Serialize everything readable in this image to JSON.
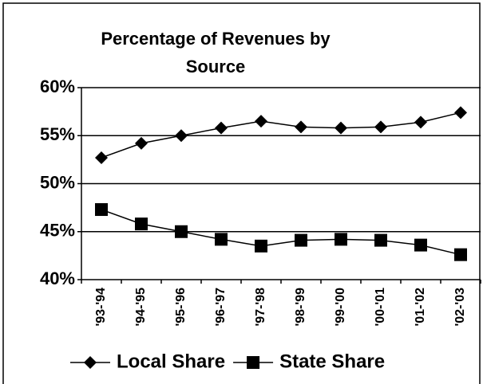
{
  "chart_data": {
    "type": "line",
    "title": [
      "Percentage of Revenues by",
      "Source"
    ],
    "categories": [
      "'93-'94",
      "'94-'95",
      "'95-'96",
      "'96-'97",
      "'97-'98",
      "'98-'99",
      "'99-'00",
      "'00-'01",
      "'01-'02",
      "'02-'03"
    ],
    "series": [
      {
        "name": "Local Share",
        "color": "#000000",
        "marker": "diamond",
        "values": [
          52.7,
          54.2,
          55.0,
          55.8,
          56.5,
          55.9,
          55.8,
          55.9,
          56.4,
          57.4
        ]
      },
      {
        "name": "State Share",
        "color": "#000000",
        "marker": "square",
        "values": [
          47.3,
          45.8,
          45.0,
          44.2,
          43.5,
          44.1,
          44.2,
          44.1,
          43.6,
          42.6
        ]
      }
    ],
    "ylim": [
      40,
      60
    ],
    "yticks": [
      {
        "value": 40,
        "label": "40%"
      },
      {
        "value": 45,
        "label": "45%"
      },
      {
        "value": 50,
        "label": "50%"
      },
      {
        "value": 55,
        "label": "55%"
      },
      {
        "value": 60,
        "label": "60%"
      }
    ],
    "grid": true,
    "legend": "bottom"
  }
}
